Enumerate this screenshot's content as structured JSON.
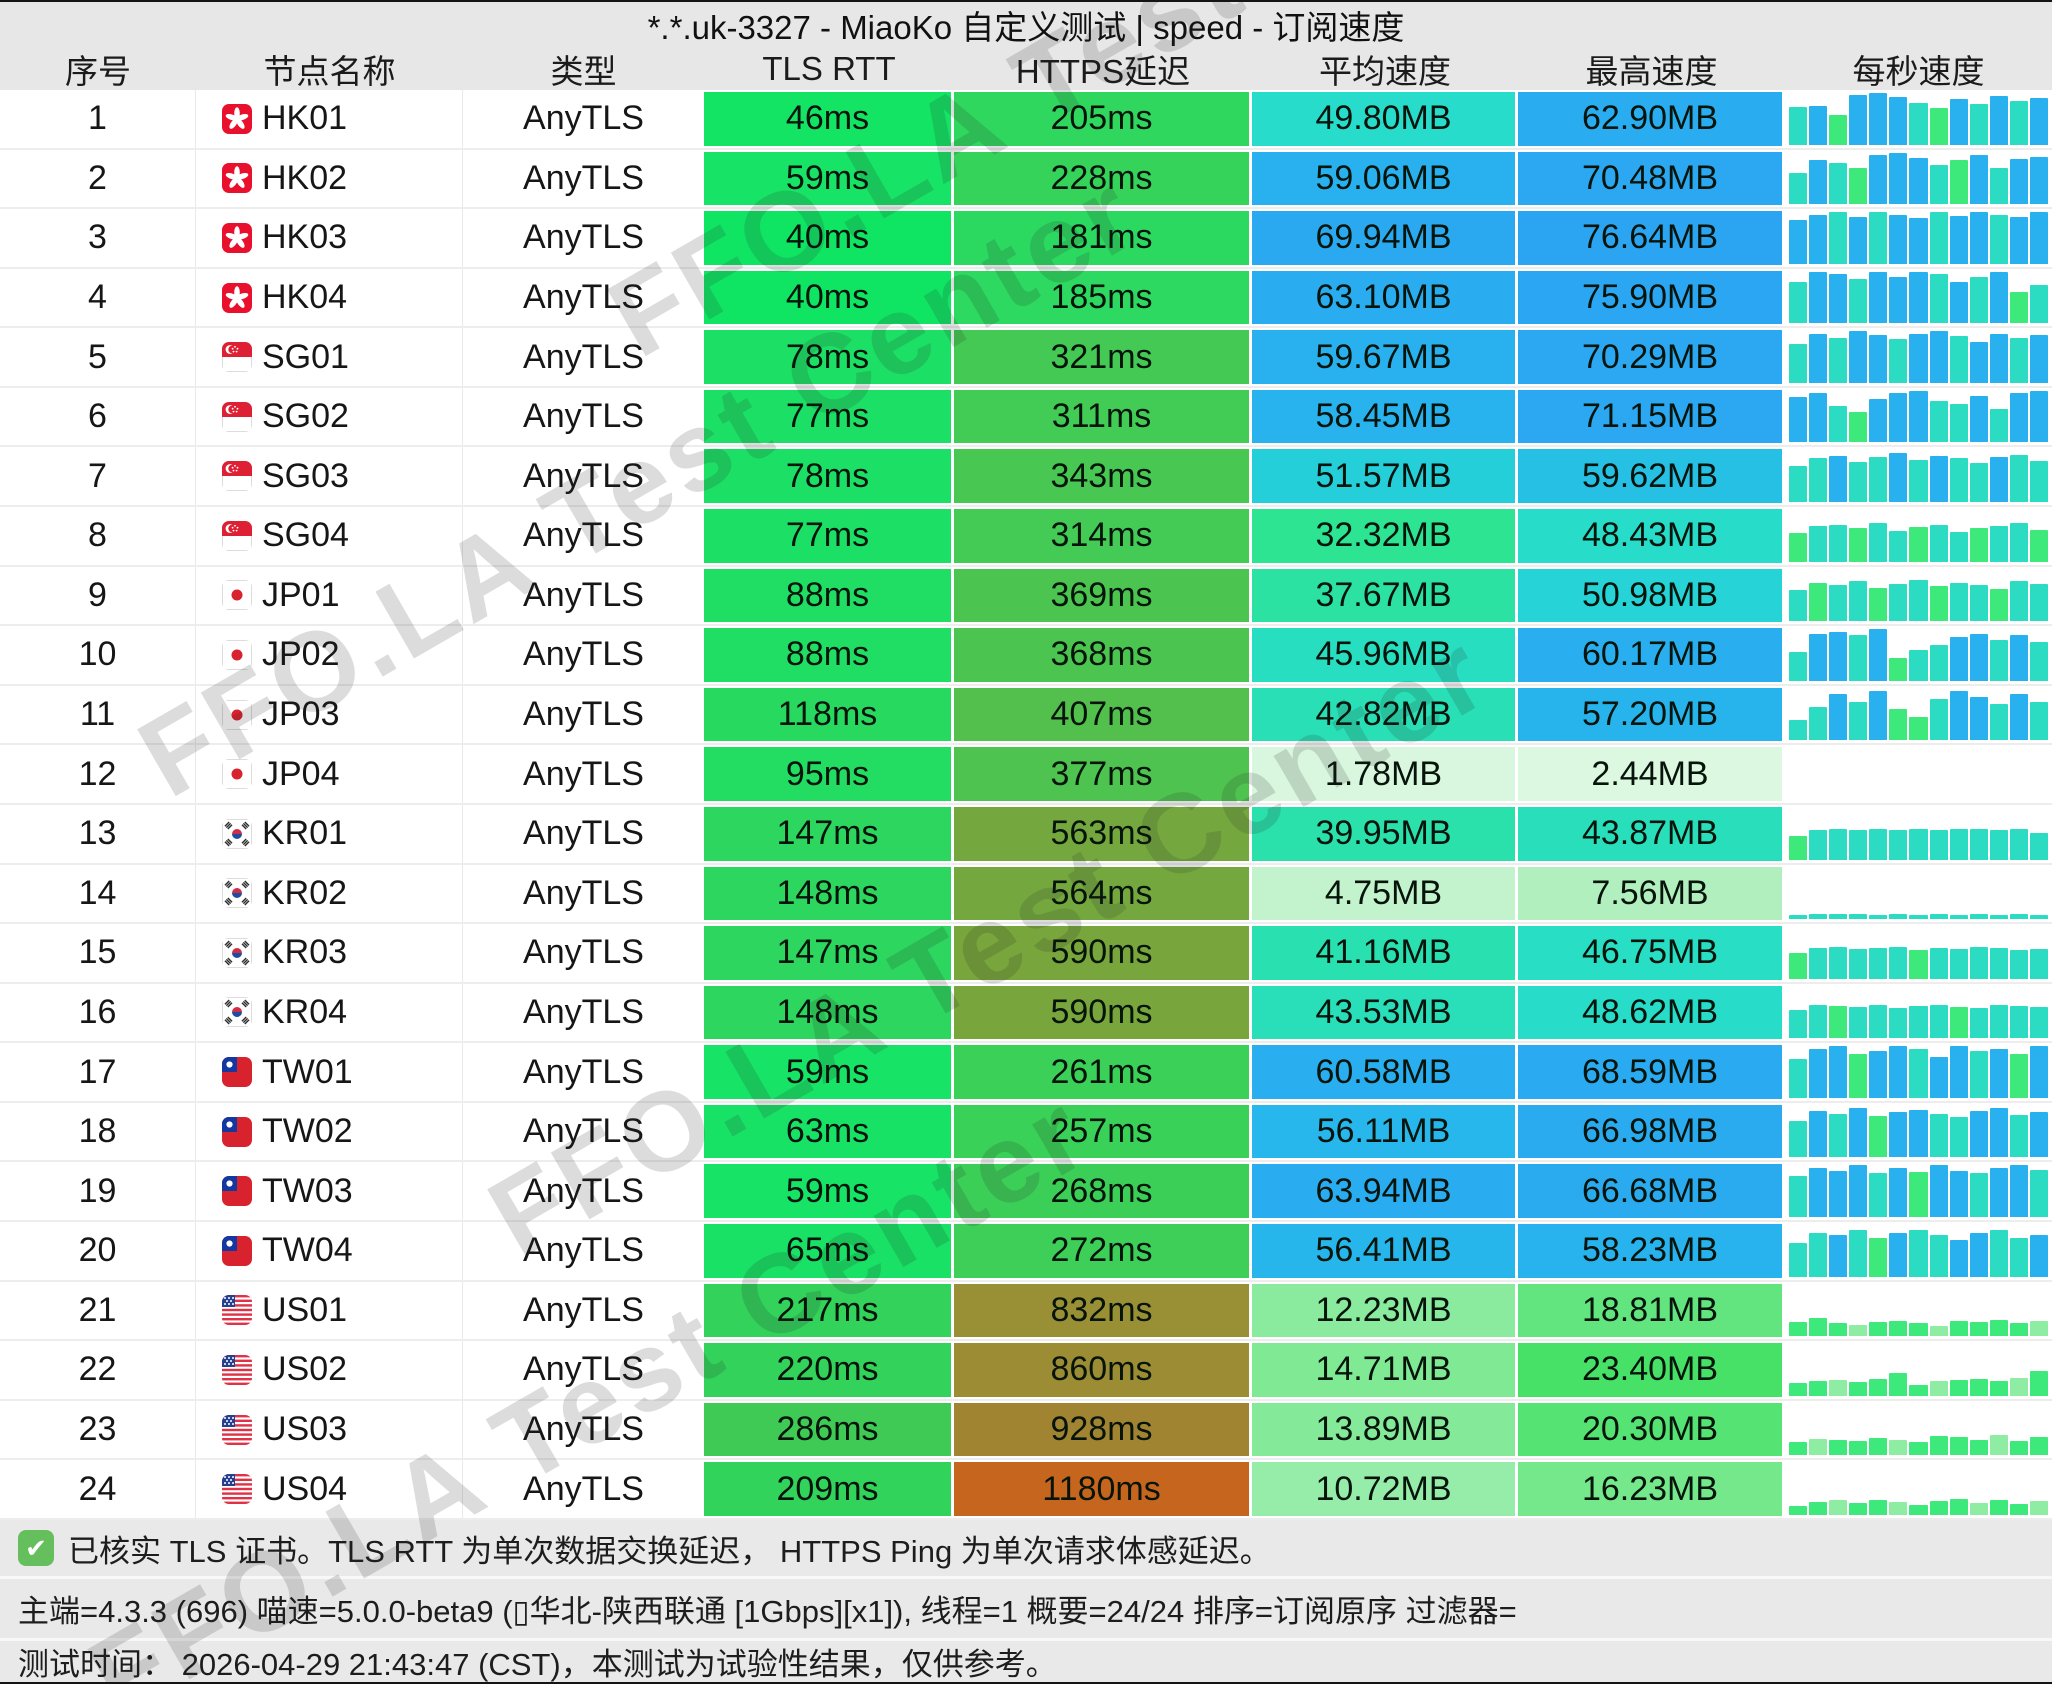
{
  "title": "*.*.uk-3327 - MiaoKo 自定义测试 | speed - 订阅速度",
  "watermark": "FFO.LA Test Center",
  "columns": [
    "序号",
    "节点名称",
    "类型",
    "TLS RTT",
    "HTTPS延迟",
    "平均速度",
    "最高速度",
    "每秒速度"
  ],
  "colors": {
    "header_bg": "#e7e7e7",
    "footer_bg": "#e9e9e9",
    "check_icon": "#65bf5c",
    "spark_palette": {
      "b": "#28b1ee",
      "t": "#2bdcc3",
      "g": "#3de97b",
      "l": "#8feda3"
    }
  },
  "rows": [
    {
      "i": "1",
      "f": "hk",
      "n": "HK01",
      "t": "AnyTLS",
      "tls": "46ms",
      "tc": "#13e464",
      "https": "205ms",
      "hc": "#30d75e",
      "avg": "49.80MB",
      "ac": "#27dcca",
      "max": "62.90MB",
      "mc": "#29adf0",
      "sh": [
        72,
        75,
        58,
        96,
        100,
        92,
        80,
        70,
        88,
        78,
        95,
        85,
        90
      ],
      "sc": "tbgbbbtgbtbtb"
    },
    {
      "i": "2",
      "f": "hk",
      "n": "HK02",
      "t": "AnyTLS",
      "tls": "59ms",
      "tc": "#17e366",
      "https": "228ms",
      "hc": "#36d35b",
      "avg": "59.06MB",
      "ac": "#28b1ee",
      "max": "70.48MB",
      "mc": "#2ba8f1",
      "sh": [
        60,
        85,
        80,
        70,
        95,
        100,
        90,
        75,
        85,
        95,
        70,
        88,
        92
      ],
      "sc": "tbtgbbbtgbtbb"
    },
    {
      "i": "3",
      "f": "hk",
      "n": "HK03",
      "t": "AnyTLS",
      "tls": "40ms",
      "tc": "#0fe563",
      "https": "181ms",
      "hc": "#2cd960",
      "avg": "69.94MB",
      "ac": "#2aa9f1",
      "max": "76.64MB",
      "mc": "#2ba5f2",
      "sh": [
        85,
        95,
        100,
        90,
        100,
        95,
        88,
        100,
        92,
        100,
        95,
        90,
        100
      ],
      "sc": "bbtbtbbtbbtbb"
    },
    {
      "i": "4",
      "f": "hk",
      "n": "HK04",
      "t": "AnyTLS",
      "tls": "40ms",
      "tc": "#0fe563",
      "https": "185ms",
      "hc": "#2dd960",
      "avg": "63.10MB",
      "ac": "#29adf0",
      "max": "75.90MB",
      "mc": "#2ba6f2",
      "sh": [
        80,
        100,
        95,
        85,
        100,
        90,
        100,
        95,
        80,
        90,
        100,
        60,
        75
      ],
      "sc": "tbbtbbbtbtbgt"
    },
    {
      "i": "5",
      "f": "sg",
      "n": "SG01",
      "t": "AnyTLS",
      "tls": "78ms",
      "tc": "#1ce065",
      "https": "321ms",
      "hc": "#44ca54",
      "avg": "59.67MB",
      "ac": "#28b1ee",
      "max": "70.29MB",
      "mc": "#2ba8f1",
      "sh": [
        75,
        95,
        88,
        100,
        92,
        85,
        95,
        100,
        90,
        80,
        95,
        88,
        92
      ],
      "sc": "tbtbbtbbtbbtb"
    },
    {
      "i": "6",
      "f": "sg",
      "n": "SG02",
      "t": "AnyTLS",
      "tls": "77ms",
      "tc": "#1ce065",
      "https": "311ms",
      "hc": "#42cb55",
      "avg": "58.45MB",
      "ac": "#28b2ee",
      "max": "71.15MB",
      "mc": "#2ba8f1",
      "sh": [
        88,
        95,
        70,
        60,
        85,
        95,
        100,
        80,
        75,
        90,
        65,
        95,
        100
      ],
      "sc": "bbtgbbbttbtbb"
    },
    {
      "i": "7",
      "f": "sg",
      "n": "SG03",
      "t": "AnyTLS",
      "tls": "78ms",
      "tc": "#1ce065",
      "https": "343ms",
      "hc": "#48c752",
      "avg": "51.57MB",
      "ac": "#25cfda",
      "max": "59.62MB",
      "mc": "#27c0e5",
      "sh": [
        70,
        85,
        90,
        78,
        88,
        95,
        82,
        90,
        85,
        75,
        88,
        92,
        80
      ],
      "sc": "ttbttbtbttbtt"
    },
    {
      "i": "8",
      "f": "sg",
      "n": "SG04",
      "t": "AnyTLS",
      "tls": "77ms",
      "tc": "#1ce065",
      "https": "314ms",
      "hc": "#43cb55",
      "avg": "32.32MB",
      "ac": "#2ce492",
      "max": "48.43MB",
      "mc": "#27ddc9",
      "sh": [
        55,
        70,
        72,
        65,
        75,
        60,
        68,
        72,
        58,
        65,
        70,
        75,
        62
      ],
      "sc": "gttgttgttgttg"
    },
    {
      "i": "9",
      "f": "jp",
      "n": "JP01",
      "t": "AnyTLS",
      "tls": "88ms",
      "tc": "#20de63",
      "https": "369ms",
      "hc": "#4cc450",
      "avg": "37.67MB",
      "ac": "#2be2a3",
      "max": "50.98MB",
      "mc": "#26d3d6",
      "sh": [
        60,
        75,
        70,
        78,
        65,
        72,
        80,
        68,
        75,
        70,
        62,
        78,
        72
      ],
      "sc": "tgttgttgttgtt"
    },
    {
      "i": "10",
      "f": "jp",
      "n": "JP02",
      "t": "AnyTLS",
      "tls": "88ms",
      "tc": "#20de63",
      "https": "368ms",
      "hc": "#4cc450",
      "avg": "45.96MB",
      "ac": "#28dec1",
      "max": "60.17MB",
      "mc": "#29aff0",
      "sh": [
        55,
        90,
        95,
        88,
        100,
        45,
        60,
        70,
        85,
        90,
        80,
        88,
        75
      ],
      "sc": "tbbtbgttbbtbt"
    },
    {
      "i": "11",
      "f": "jp",
      "n": "JP03",
      "t": "AnyTLS",
      "tls": "118ms",
      "tc": "#28d960",
      "https": "407ms",
      "hc": "#53c04d",
      "avg": "42.82MB",
      "ac": "#29dfb6",
      "max": "57.20MB",
      "mc": "#27b4ed",
      "sh": [
        40,
        65,
        90,
        75,
        95,
        60,
        45,
        80,
        95,
        85,
        70,
        90,
        75
      ],
      "sc": "ttbtbggtbbtbt"
    },
    {
      "i": "12",
      "f": "jp",
      "n": "JP04",
      "t": "AnyTLS",
      "tls": "95ms",
      "tc": "#23dc62",
      "https": "377ms",
      "hc": "#4ec34f",
      "avg": "1.78MB",
      "ac": "#d9f7de",
      "max": "2.44MB",
      "mc": "#dcf8e1",
      "sh": [],
      "sc": ""
    },
    {
      "i": "13",
      "f": "kr",
      "n": "KR01",
      "t": "AnyTLS",
      "tls": "147ms",
      "tc": "#2dd65e",
      "https": "563ms",
      "hc": "#74a83e",
      "avg": "39.95MB",
      "ac": "#2ae1ac",
      "max": "43.87MB",
      "mc": "#29dfbb",
      "sh": [
        45,
        58,
        60,
        58,
        60,
        57,
        60,
        58,
        60,
        59,
        57,
        60,
        52
      ],
      "sc": "gtttttttttttt"
    },
    {
      "i": "14",
      "f": "kr",
      "n": "KR02",
      "t": "AnyTLS",
      "tls": "148ms",
      "tc": "#2dd65e",
      "https": "564ms",
      "hc": "#74a83e",
      "avg": "4.75MB",
      "ac": "#c3f3cd",
      "max": "7.56MB",
      "mc": "#b2efbf",
      "sh": [
        8,
        9,
        10,
        9,
        8,
        9,
        8,
        9,
        8,
        9,
        8,
        9,
        8
      ],
      "sc": "ttttttttttttt"
    },
    {
      "i": "15",
      "f": "kr",
      "n": "KR03",
      "t": "AnyTLS",
      "tls": "147ms",
      "tc": "#2dd65e",
      "https": "590ms",
      "hc": "#78a53c",
      "avg": "41.16MB",
      "ac": "#29e0b1",
      "max": "46.75MB",
      "mc": "#28dec4",
      "sh": [
        50,
        60,
        62,
        58,
        60,
        62,
        55,
        60,
        58,
        62,
        60,
        55,
        58
      ],
      "sc": "gtttttgtttttt"
    },
    {
      "i": "16",
      "f": "kr",
      "n": "KR04",
      "t": "AnyTLS",
      "tls": "148ms",
      "tc": "#2dd65e",
      "https": "590ms",
      "hc": "#78a53c",
      "avg": "43.53MB",
      "ac": "#29dfba",
      "max": "48.62MB",
      "mc": "#27ddca",
      "sh": [
        55,
        65,
        62,
        60,
        65,
        58,
        62,
        65,
        60,
        58,
        65,
        62,
        60
      ],
      "sc": "ttgtttttgtttt"
    },
    {
      "i": "17",
      "f": "tw",
      "n": "TW01",
      "t": "AnyTLS",
      "tls": "59ms",
      "tc": "#17e366",
      "https": "261ms",
      "hc": "#3bd058",
      "avg": "60.58MB",
      "ac": "#29aeef",
      "max": "68.59MB",
      "mc": "#2aaaf1",
      "sh": [
        75,
        95,
        100,
        85,
        90,
        100,
        95,
        80,
        100,
        90,
        95,
        85,
        100
      ],
      "sc": "tbbgbbtbbtbgb"
    },
    {
      "i": "18",
      "f": "tw",
      "n": "TW02",
      "t": "AnyTLS",
      "tls": "63ms",
      "tc": "#18e266",
      "https": "257ms",
      "hc": "#3ad158",
      "avg": "56.11MB",
      "ac": "#27b7ec",
      "max": "66.98MB",
      "mc": "#2aabf0",
      "sh": [
        70,
        90,
        85,
        95,
        80,
        88,
        92,
        85,
        78,
        90,
        95,
        82,
        88
      ],
      "sc": "tbtbgbbttbbtb"
    },
    {
      "i": "19",
      "f": "tw",
      "n": "TW03",
      "t": "AnyTLS",
      "tls": "59ms",
      "tc": "#17e366",
      "https": "268ms",
      "hc": "#3ccf57",
      "avg": "63.94MB",
      "ac": "#2aacf0",
      "max": "66.68MB",
      "mc": "#2aabf0",
      "sh": [
        80,
        95,
        90,
        100,
        85,
        95,
        88,
        100,
        90,
        85,
        95,
        100,
        92
      ],
      "sc": "tbbbtbgbbtbbt"
    },
    {
      "i": "20",
      "f": "tw",
      "n": "TW04",
      "t": "AnyTLS",
      "tls": "65ms",
      "tc": "#19e165",
      "https": "272ms",
      "hc": "#3dcf57",
      "avg": "56.41MB",
      "ac": "#27b6ec",
      "max": "58.23MB",
      "mc": "#28b3ee",
      "sh": [
        65,
        85,
        80,
        90,
        75,
        85,
        90,
        80,
        70,
        85,
        90,
        75,
        80
      ],
      "sc": "ttbtgbttbbttb"
    },
    {
      "i": "21",
      "f": "us",
      "n": "US01",
      "t": "AnyTLS",
      "tls": "217ms",
      "tc": "#32d25b",
      "https": "832ms",
      "hc": "#998f34",
      "avg": "12.23MB",
      "ac": "#8aeb9e",
      "max": "18.81MB",
      "mc": "#62e57e",
      "sh": [
        28,
        35,
        25,
        22,
        28,
        30,
        25,
        20,
        30,
        28,
        32,
        25,
        30
      ],
      "sc": "ggglggglggggl"
    },
    {
      "i": "22",
      "f": "us",
      "n": "US02",
      "t": "AnyTLS",
      "tls": "220ms",
      "tc": "#33d25a",
      "https": "860ms",
      "hc": "#9c8c33",
      "avg": "14.71MB",
      "ac": "#7fe994",
      "max": "23.40MB",
      "mc": "#47e167",
      "sh": [
        25,
        28,
        30,
        26,
        32,
        45,
        20,
        28,
        30,
        32,
        28,
        35,
        48
      ],
      "sc": "gglgggglggglg"
    },
    {
      "i": "23",
      "f": "us",
      "n": "US03",
      "t": "AnyTLS",
      "tls": "286ms",
      "tc": "#3fca55",
      "https": "928ms",
      "hc": "#a18431",
      "avg": "13.89MB",
      "ac": "#84ea99",
      "max": "20.30MB",
      "mc": "#55e373",
      "sh": [
        25,
        32,
        30,
        28,
        34,
        30,
        25,
        38,
        35,
        30,
        40,
        28,
        35
      ],
      "sc": "glggglgggglgg"
    },
    {
      "i": "24",
      "f": "us",
      "n": "US04",
      "t": "AnyTLS",
      "tls": "209ms",
      "tc": "#31d35b",
      "https": "1180ms",
      "hc": "#c6661e",
      "avg": "10.72MB",
      "ac": "#96eda9",
      "max": "16.23MB",
      "mc": "#75e88c",
      "sh": [
        18,
        25,
        28,
        24,
        28,
        25,
        20,
        26,
        30,
        24,
        28,
        22,
        26
      ],
      "sc": "gglgglggglggl"
    }
  ],
  "footer": {
    "line1": "已核实 TLS 证书。TLS RTT 为单次数据交换延迟， HTTPS Ping 为单次请求体感延迟。",
    "check_glyph": "✔",
    "line2": "主端=4.3.3 (696) 喵速=5.0.0-beta9 (▯华北-陕西联通 [1Gbps][x1]), 线程=1 概要=24/24 排序=订阅原序 过滤器=",
    "line3": "测试时间： 2026-04-29 21:43:47 (CST)，本测试为试验性结果，仅供参考。"
  }
}
